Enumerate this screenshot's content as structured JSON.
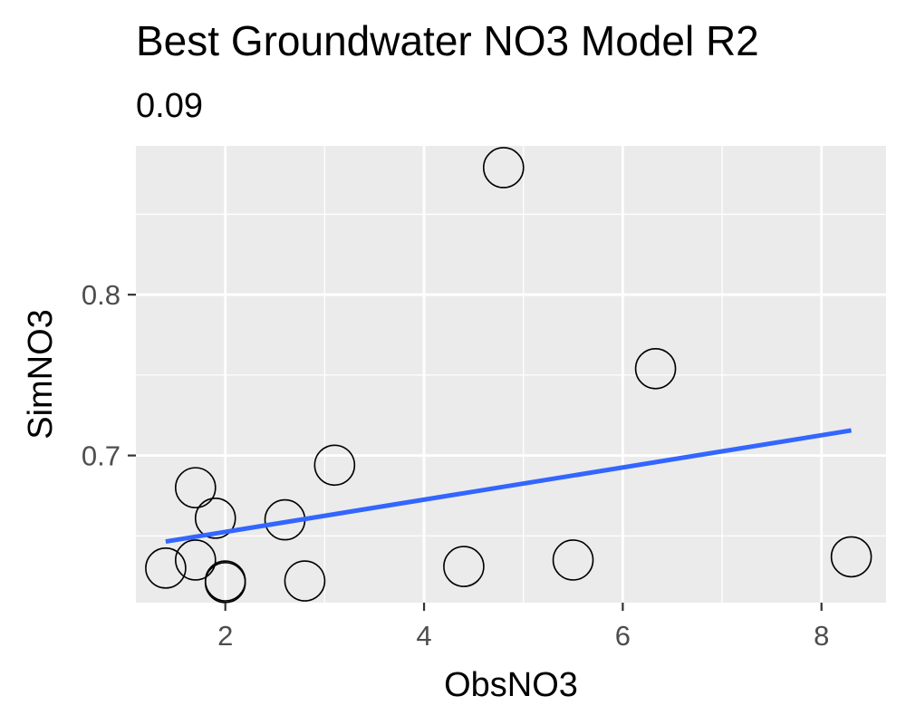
{
  "chart_data": {
    "type": "scatter",
    "title": "Best Groundwater NO3 Model R2",
    "subtitle": "0.09",
    "xlabel": "ObsNO3",
    "ylabel": "SimNO3",
    "xlim": [
      1.1,
      8.65
    ],
    "ylim": [
      0.6085,
      0.8925
    ],
    "x_ticks": [
      2,
      4,
      6,
      8
    ],
    "x_tick_labels": [
      "2",
      "4",
      "6",
      "8"
    ],
    "y_ticks": [
      0.7,
      0.8
    ],
    "y_tick_labels": [
      "0.7",
      "0.8"
    ],
    "grid": true,
    "points": [
      {
        "x": 1.4,
        "y": 0.63
      },
      {
        "x": 1.7,
        "y": 0.635
      },
      {
        "x": 1.7,
        "y": 0.68
      },
      {
        "x": 1.9,
        "y": 0.661
      },
      {
        "x": 2.0,
        "y": 0.622
      },
      {
        "x": 2.0,
        "y": 0.621
      },
      {
        "x": 2.6,
        "y": 0.66
      },
      {
        "x": 2.8,
        "y": 0.622
      },
      {
        "x": 3.1,
        "y": 0.694
      },
      {
        "x": 4.4,
        "y": 0.631
      },
      {
        "x": 4.8,
        "y": 0.879
      },
      {
        "x": 5.5,
        "y": 0.635
      },
      {
        "x": 6.33,
        "y": 0.754
      },
      {
        "x": 8.3,
        "y": 0.637
      }
    ],
    "fit_line": {
      "x": [
        1.4,
        8.3
      ],
      "y": [
        0.6465,
        0.7156
      ],
      "color": "#3366FF"
    },
    "colors": {
      "panel": "#EBEBEB",
      "grid": "#FFFFFF",
      "point_stroke": "#000000"
    }
  }
}
